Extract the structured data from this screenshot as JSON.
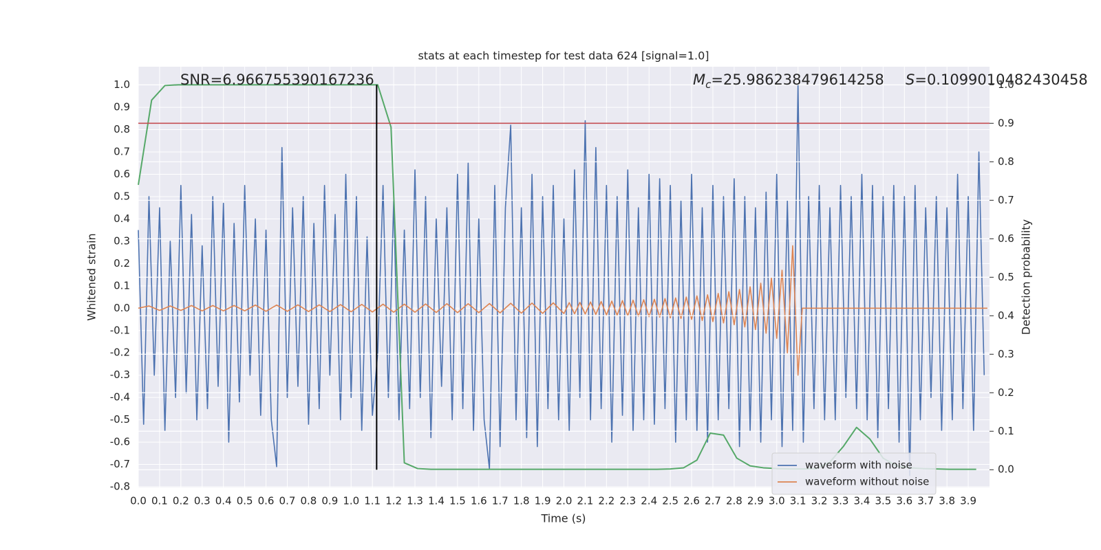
{
  "chart_data": {
    "type": "line",
    "title": "stats at each timestep for test data 624 [signal=1.0]",
    "xlabel": "Time (s)",
    "ylabel": "Whitened strain",
    "y2label": "Detection probability",
    "annotations": [
      "SNR=6.966755390167236",
      {
        "symbol": "M",
        "subscript": "c",
        "text": "=25.986238479614258"
      },
      {
        "symbol": "S",
        "text": "=0.1099010482430458"
      }
    ],
    "xlim": [
      0,
      4.0
    ],
    "ylim": [
      -0.803,
      1.082
    ],
    "y2lim": [
      -0.046,
      1.047
    ],
    "xticks": [
      {
        "value": 0,
        "label": "0.0"
      },
      0.1,
      0.2,
      0.3,
      0.4,
      0.5,
      0.6,
      0.7,
      0.8,
      0.9,
      {
        "value": 1,
        "label": "1.0"
      },
      1.1,
      1.2,
      1.3,
      1.4,
      1.5,
      1.6,
      1.7,
      1.8,
      1.9,
      {
        "value": 2,
        "label": "2.0"
      },
      2.1,
      2.2,
      2.3,
      2.4,
      2.5,
      2.6,
      2.7,
      2.8,
      2.9,
      {
        "value": 3,
        "label": "3.0"
      },
      3.1,
      3.2,
      3.3,
      3.4,
      3.5,
      3.6,
      3.7,
      3.8,
      3.9
    ],
    "yticks": [
      -0.8,
      -0.7,
      -0.6,
      -0.5,
      -0.4,
      -0.3,
      -0.2,
      -0.1,
      {
        "value": 0,
        "label": "0.0"
      },
      0.1,
      0.2,
      0.3,
      0.4,
      0.5,
      0.6,
      0.7,
      0.8,
      0.9,
      {
        "value": 1,
        "label": "1.0"
      }
    ],
    "y2ticks": [
      {
        "value": 0,
        "label": "0.0"
      },
      0.1,
      0.2,
      0.3,
      0.4,
      0.5,
      0.6,
      0.7,
      0.8,
      0.9,
      {
        "value": 1,
        "label": "1.0"
      }
    ],
    "grid": true,
    "legend": "lower right",
    "series": [
      {
        "name": "waveform with noise",
        "color": "#4c72b0",
        "x": [
          0,
          0.025,
          0.05,
          0.075,
          0.1,
          0.125,
          0.15,
          0.175,
          0.2,
          0.225,
          0.25,
          0.275,
          0.3,
          0.325,
          0.35,
          0.375,
          0.4,
          0.425,
          0.45,
          0.475,
          0.5,
          0.525,
          0.55,
          0.575,
          0.6,
          0.625,
          0.65,
          0.675,
          0.7,
          0.725,
          0.75,
          0.775,
          0.8,
          0.825,
          0.85,
          0.875,
          0.9,
          0.925,
          0.95,
          0.975,
          1.0,
          1.025,
          1.05,
          1.075,
          1.1,
          1.125,
          1.15,
          1.175,
          1.2,
          1.225,
          1.25,
          1.275,
          1.3,
          1.325,
          1.35,
          1.375,
          1.4,
          1.425,
          1.45,
          1.475,
          1.5,
          1.525,
          1.55,
          1.575,
          1.6,
          1.625,
          1.65,
          1.675,
          1.7,
          1.725,
          1.75,
          1.775,
          1.8,
          1.825,
          1.85,
          1.875,
          1.9,
          1.925,
          1.95,
          1.975,
          2.0,
          2.025,
          2.05,
          2.075,
          2.1,
          2.125,
          2.15,
          2.175,
          2.2,
          2.225,
          2.25,
          2.275,
          2.3,
          2.325,
          2.35,
          2.375,
          2.4,
          2.425,
          2.45,
          2.475,
          2.5,
          2.525,
          2.55,
          2.575,
          2.6,
          2.625,
          2.65,
          2.675,
          2.7,
          2.725,
          2.75,
          2.775,
          2.8,
          2.825,
          2.85,
          2.875,
          2.9,
          2.925,
          2.95,
          2.975,
          3.0,
          3.025,
          3.05,
          3.075,
          3.1,
          3.125,
          3.15,
          3.175,
          3.2,
          3.225,
          3.25,
          3.275,
          3.3,
          3.325,
          3.35,
          3.375,
          3.4,
          3.425,
          3.45,
          3.475,
          3.5,
          3.525,
          3.55,
          3.575,
          3.6,
          3.625,
          3.65,
          3.675,
          3.7,
          3.725,
          3.75,
          3.775,
          3.8,
          3.825,
          3.85,
          3.875,
          3.9,
          3.925,
          3.95,
          3.975
        ],
        "values": [
          0.35,
          -0.52,
          0.5,
          -0.3,
          0.45,
          -0.55,
          0.3,
          -0.4,
          0.55,
          -0.38,
          0.42,
          -0.5,
          0.28,
          -0.45,
          0.5,
          -0.35,
          0.47,
          -0.6,
          0.38,
          -0.42,
          0.55,
          -0.3,
          0.4,
          -0.48,
          0.35,
          -0.5,
          -0.71,
          0.72,
          -0.4,
          0.45,
          -0.35,
          0.5,
          -0.52,
          0.38,
          -0.45,
          0.55,
          -0.3,
          0.42,
          -0.5,
          0.6,
          -0.4,
          0.5,
          -0.55,
          0.32,
          -0.48,
          -0.2,
          0.55,
          -0.4,
          0.48,
          -0.5,
          0.35,
          -0.45,
          0.62,
          -0.4,
          0.5,
          -0.58,
          0.4,
          -0.35,
          0.45,
          -0.5,
          0.6,
          -0.45,
          0.65,
          -0.55,
          0.4,
          -0.5,
          -0.72,
          0.55,
          -0.62,
          0.45,
          0.82,
          -0.5,
          0.45,
          -0.58,
          0.6,
          -0.62,
          0.5,
          -0.45,
          0.55,
          -0.5,
          0.4,
          -0.55,
          0.62,
          -0.4,
          0.84,
          -0.5,
          0.72,
          -0.45,
          0.55,
          -0.6,
          0.5,
          -0.48,
          0.62,
          -0.55,
          0.45,
          -0.5,
          0.6,
          -0.52,
          0.58,
          -0.45,
          0.55,
          -0.6,
          0.48,
          -0.5,
          0.6,
          -0.55,
          0.45,
          -0.6,
          0.55,
          -0.5,
          0.5,
          -0.45,
          0.58,
          -0.62,
          0.5,
          -0.55,
          0.45,
          -0.6,
          0.52,
          -0.5,
          0.6,
          -0.62,
          0.48,
          -0.55,
          1.0,
          -0.6,
          0.5,
          -0.45,
          0.55,
          -0.5,
          0.45,
          -0.5,
          0.55,
          -0.4,
          0.5,
          -0.45,
          0.6,
          -0.5,
          0.55,
          -0.58,
          0.5,
          -0.45,
          0.55,
          -0.6,
          0.5,
          -0.75,
          0.55,
          -0.5,
          0.45,
          -0.4,
          0.5,
          -0.55,
          0.45,
          -0.5,
          0.6,
          -0.45,
          0.5,
          -0.55,
          0.7,
          -0.3
        ]
      },
      {
        "name": "waveform without noise",
        "color": "#dd8452",
        "x": [
          0,
          0.05,
          0.1,
          0.15,
          0.2,
          0.25,
          0.3,
          0.35,
          0.4,
          0.45,
          0.5,
          0.55,
          0.6,
          0.65,
          0.7,
          0.75,
          0.8,
          0.85,
          0.9,
          0.95,
          1.0,
          1.05,
          1.1,
          1.15,
          1.2,
          1.25,
          1.3,
          1.35,
          1.4,
          1.45,
          1.5,
          1.55,
          1.6,
          1.65,
          1.7,
          1.75,
          1.8,
          1.85,
          1.9,
          1.95,
          2.0,
          2.025,
          2.05,
          2.075,
          2.1,
          2.125,
          2.15,
          2.175,
          2.2,
          2.225,
          2.25,
          2.275,
          2.3,
          2.325,
          2.35,
          2.375,
          2.4,
          2.425,
          2.45,
          2.475,
          2.5,
          2.525,
          2.55,
          2.575,
          2.6,
          2.625,
          2.65,
          2.675,
          2.7,
          2.725,
          2.75,
          2.775,
          2.8,
          2.825,
          2.85,
          2.875,
          2.9,
          2.925,
          2.95,
          2.975,
          3.0,
          3.025,
          3.05,
          3.075,
          3.1,
          3.12,
          3.99
        ],
        "values": [
          0.0,
          0.01,
          -0.01,
          0.01,
          -0.01,
          0.012,
          -0.012,
          0.012,
          -0.012,
          0.012,
          -0.012,
          0.014,
          -0.014,
          0.014,
          -0.014,
          0.015,
          -0.015,
          0.015,
          -0.015,
          0.016,
          -0.016,
          0.017,
          -0.017,
          0.018,
          -0.018,
          0.018,
          -0.018,
          0.019,
          -0.019,
          0.02,
          -0.02,
          0.02,
          -0.02,
          0.021,
          -0.021,
          0.022,
          -0.022,
          0.023,
          -0.023,
          0.024,
          -0.024,
          0.025,
          -0.025,
          0.026,
          -0.026,
          0.028,
          -0.028,
          0.03,
          -0.03,
          0.032,
          -0.032,
          0.034,
          -0.034,
          0.036,
          -0.036,
          0.038,
          -0.038,
          0.04,
          -0.04,
          0.043,
          -0.043,
          0.046,
          -0.046,
          0.05,
          -0.05,
          0.055,
          -0.055,
          0.06,
          -0.06,
          0.066,
          -0.066,
          0.074,
          -0.074,
          0.084,
          -0.084,
          0.096,
          -0.096,
          0.112,
          -0.112,
          0.135,
          -0.135,
          0.17,
          -0.2,
          0.28,
          -0.3,
          0.0,
          0.0
        ]
      },
      {
        "color": "#55a868",
        "axis": "y2",
        "x": [
          0,
          0.0625,
          0.125,
          0.1875,
          0.25,
          0.3125,
          0.375,
          0.4375,
          0.5,
          0.5625,
          0.625,
          0.6875,
          0.75,
          0.8125,
          0.875,
          0.9375,
          1.0,
          1.0625,
          1.125,
          1.1875,
          1.25,
          1.3125,
          1.375,
          1.4375,
          1.5,
          1.5625,
          1.625,
          1.6875,
          1.75,
          1.8125,
          1.875,
          1.9375,
          2.0,
          2.0625,
          2.125,
          2.1875,
          2.25,
          2.3125,
          2.375,
          2.4375,
          2.5,
          2.5625,
          2.625,
          2.6875,
          2.75,
          2.8125,
          2.875,
          2.9375,
          3.0,
          3.0625,
          3.125,
          3.1875,
          3.25,
          3.3125,
          3.375,
          3.4375,
          3.5,
          3.5625,
          3.625,
          3.6875,
          3.75,
          3.8125,
          3.875,
          3.9375
        ],
        "values": [
          0.74,
          0.96,
          0.998,
          1.0,
          1.0,
          1.0,
          1.0,
          1.0,
          1.0,
          1.0,
          1.0,
          1.0,
          1.0,
          1.0,
          1.0,
          1.0,
          1.0,
          1.0,
          1.0,
          0.89,
          0.018,
          0.003,
          0.001,
          0.001,
          0.001,
          0.001,
          0.001,
          0.001,
          0.001,
          0.001,
          0.001,
          0.001,
          0.001,
          0.001,
          0.001,
          0.001,
          0.001,
          0.001,
          0.001,
          0.001,
          0.002,
          0.005,
          0.025,
          0.095,
          0.09,
          0.03,
          0.01,
          0.005,
          0.003,
          0.002,
          0.002,
          0.003,
          0.02,
          0.06,
          0.11,
          0.08,
          0.03,
          0.01,
          0.005,
          0.003,
          0.002,
          0.001,
          0.001,
          0.001
        ]
      }
    ],
    "hlines": [
      {
        "y": 0.9,
        "axis": "y2",
        "color": "#c44e52"
      }
    ],
    "vlines": [
      {
        "x": 1.12,
        "ymin": 0,
        "ymax": 1,
        "axis": "y2",
        "color": "#000000"
      }
    ]
  }
}
